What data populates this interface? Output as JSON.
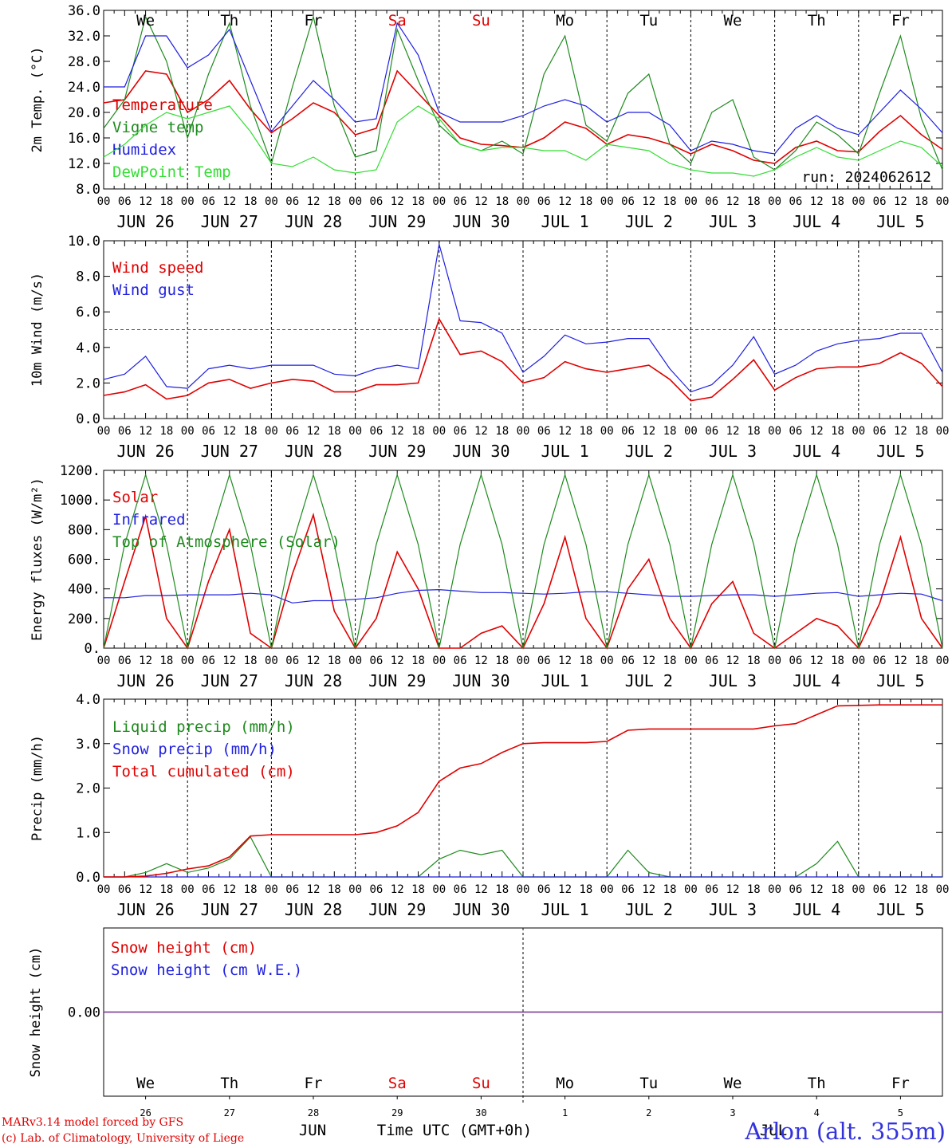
{
  "days": [
    "JUN 26",
    "JUN 27",
    "JUN 28",
    "JUN 29",
    "JUN 30",
    "JUL 1",
    "JUL 2",
    "JUL 3",
    "JUL 4",
    "JUL 5"
  ],
  "weekdays": [
    {
      "label": "We",
      "weekend": false
    },
    {
      "label": "Th",
      "weekend": false
    },
    {
      "label": "Fr",
      "weekend": false
    },
    {
      "label": "Sa",
      "weekend": true
    },
    {
      "label": "Su",
      "weekend": true
    },
    {
      "label": "Mo",
      "weekend": false
    },
    {
      "label": "Tu",
      "weekend": false
    },
    {
      "label": "We",
      "weekend": false
    },
    {
      "label": "Th",
      "weekend": false
    },
    {
      "label": "Fr",
      "weekend": false
    }
  ],
  "hour_ticks": [
    "00",
    "06",
    "12",
    "18"
  ],
  "last_hour_tick": "00",
  "day_numbers": [
    "26",
    "27",
    "28",
    "29",
    "30",
    "1",
    "2",
    "3",
    "4",
    "5"
  ],
  "month_labels": {
    "jun": "JUN",
    "jul": "JUL"
  },
  "run_label": "run: 2024062612",
  "bottom_axis_title": "Time UTC (GMT+0h)",
  "credit_line1": "MARv3.14 model forced by GFS",
  "credit_line2": "(c) Lab. of Climatology, University of Liege",
  "station": "Arlon (alt. 355m)",
  "colors": {
    "red": "#e00000",
    "green": "#1e8a1e",
    "blue": "#1f1fe0",
    "lightgreen": "#33dd33",
    "purple": "#7a3b9a"
  },
  "chart_data": [
    {
      "type": "line",
      "ylabel": "2m Temp. (°C)",
      "ylim": [
        8.0,
        36.0
      ],
      "yticks": [
        "8.0",
        "12.0",
        "16.0",
        "20.0",
        "24.0",
        "28.0",
        "32.0",
        "36.0"
      ],
      "x_hours": [
        0,
        6,
        12,
        18,
        24,
        30,
        36,
        42,
        48,
        54,
        60,
        66,
        72,
        78,
        84,
        90,
        96,
        102,
        108,
        114,
        120,
        126,
        132,
        138,
        144,
        150,
        156,
        162,
        168,
        174,
        180,
        186,
        192,
        198,
        204,
        210,
        216,
        222,
        228,
        234,
        240
      ],
      "series": [
        {
          "name": "Temperature",
          "color": "red",
          "values": [
            21.5,
            22,
            26.5,
            26,
            20,
            22,
            25,
            20.5,
            16.8,
            19,
            21.5,
            20,
            16.5,
            17.5,
            26.5,
            23,
            19.5,
            16,
            15,
            14.8,
            14.5,
            16,
            18.5,
            17.5,
            15,
            16.5,
            16,
            15,
            13.5,
            15,
            14,
            12.5,
            12,
            14.5,
            15.5,
            14,
            13.8,
            17,
            19.5,
            16.5,
            14.2
          ]
        },
        {
          "name": "Vigne temp",
          "color": "green",
          "values": [
            17.5,
            22,
            35,
            28,
            16,
            26,
            34,
            21,
            12,
            24,
            35,
            21,
            13,
            14,
            33,
            25,
            18,
            15,
            14,
            15.5,
            13.5,
            26,
            32,
            18,
            15.5,
            23,
            26,
            15,
            12,
            20,
            22,
            13,
            11,
            14,
            18.5,
            16.5,
            13.5,
            23,
            32,
            19,
            11
          ]
        },
        {
          "name": "Humidex",
          "color": "blue",
          "values": [
            24,
            24,
            32,
            32,
            27,
            29,
            33,
            25,
            17,
            21,
            25,
            22,
            18.5,
            19,
            34,
            29,
            20,
            18.5,
            18.5,
            18.5,
            19.5,
            21,
            22,
            21,
            18.5,
            20,
            20,
            18,
            14,
            15.5,
            15,
            14,
            13.5,
            17.5,
            19.5,
            17.5,
            16.5,
            20,
            23.5,
            20.5,
            16.8
          ]
        },
        {
          "name": "DewPoint Temp",
          "color": "lightgreen",
          "values": [
            13,
            15,
            18,
            20,
            19,
            20,
            21,
            17,
            12,
            11.5,
            13,
            11,
            10.5,
            11,
            18.5,
            21,
            19,
            15,
            14,
            14.5,
            14.5,
            14,
            14,
            12.5,
            15,
            14.5,
            14,
            12,
            11,
            10.5,
            10.5,
            10,
            11,
            13,
            14.5,
            13,
            12.5,
            14,
            15.5,
            14.5,
            11.5
          ]
        }
      ]
    },
    {
      "type": "line",
      "ylabel": "10m Wind (m/s)",
      "ylim": [
        0.0,
        10.0
      ],
      "yticks": [
        "0.0",
        "2.0",
        "4.0",
        "6.0",
        "8.0",
        "10.0"
      ],
      "reference_line": 5.0,
      "x_hours": [
        0,
        6,
        12,
        18,
        24,
        30,
        36,
        42,
        48,
        54,
        60,
        66,
        72,
        78,
        84,
        90,
        96,
        102,
        108,
        114,
        120,
        126,
        132,
        138,
        144,
        150,
        156,
        162,
        168,
        174,
        180,
        186,
        192,
        198,
        204,
        210,
        216,
        222,
        228,
        234,
        240
      ],
      "series": [
        {
          "name": "Wind speed",
          "color": "red",
          "values": [
            1.3,
            1.5,
            1.9,
            1.1,
            1.3,
            2,
            2.2,
            1.7,
            2,
            2.2,
            2.1,
            1.5,
            1.5,
            1.9,
            1.9,
            2,
            5.6,
            3.6,
            3.8,
            3.2,
            2,
            2.3,
            3.2,
            2.8,
            2.6,
            2.8,
            3,
            2.2,
            1,
            1.2,
            2.2,
            3.3,
            1.6,
            2.3,
            2.8,
            2.9,
            2.9,
            3.1,
            3.7,
            3.1,
            1.8
          ]
        },
        {
          "name": "Wind gust",
          "color": "blue",
          "values": [
            2.2,
            2.5,
            3.5,
            1.8,
            1.7,
            2.8,
            3,
            2.8,
            3,
            3,
            3,
            2.5,
            2.4,
            2.8,
            3,
            2.8,
            9.8,
            5.5,
            5.4,
            4.8,
            2.6,
            3.5,
            4.7,
            4.2,
            4.3,
            4.5,
            4.5,
            2.8,
            1.5,
            1.9,
            3,
            4.6,
            2.5,
            3,
            3.8,
            4.2,
            4.4,
            4.5,
            4.8,
            4.8,
            2.6
          ]
        }
      ]
    },
    {
      "type": "line",
      "ylabel": "Energy fluxes (W/m²)",
      "ylim": [
        0,
        1200
      ],
      "yticks": [
        "0.",
        "200.",
        "400.",
        "600.",
        "800.",
        "1000.",
        "1200."
      ],
      "x_hours": [
        0,
        6,
        12,
        18,
        24,
        30,
        36,
        42,
        48,
        54,
        60,
        66,
        72,
        78,
        84,
        90,
        96,
        102,
        108,
        114,
        120,
        126,
        132,
        138,
        144,
        150,
        156,
        162,
        168,
        174,
        180,
        186,
        192,
        198,
        204,
        210,
        216,
        222,
        228,
        234,
        240
      ],
      "series": [
        {
          "name": "Solar",
          "color": "red",
          "values": [
            0,
            450,
            890,
            200,
            0,
            450,
            800,
            100,
            0,
            500,
            900,
            250,
            0,
            200,
            650,
            400,
            0,
            0,
            100,
            150,
            0,
            300,
            750,
            200,
            0,
            400,
            600,
            200,
            0,
            300,
            450,
            100,
            0,
            100,
            200,
            150,
            0,
            300,
            750,
            200,
            0
          ]
        },
        {
          "name": "Infrared",
          "color": "blue",
          "values": [
            340,
            340,
            355,
            355,
            360,
            360,
            360,
            370,
            360,
            305,
            320,
            320,
            330,
            340,
            370,
            390,
            395,
            385,
            375,
            375,
            370,
            365,
            370,
            380,
            380,
            370,
            360,
            350,
            350,
            355,
            360,
            360,
            350,
            360,
            370,
            375,
            350,
            360,
            370,
            365,
            320
          ]
        },
        {
          "name": "Top of Atmosphere (Solar)",
          "color": "green",
          "values": [
            0,
            700,
            1170,
            700,
            0,
            700,
            1170,
            700,
            0,
            700,
            1170,
            700,
            0,
            700,
            1170,
            700,
            0,
            700,
            1170,
            700,
            0,
            700,
            1170,
            700,
            0,
            700,
            1170,
            700,
            0,
            700,
            1170,
            700,
            0,
            700,
            1170,
            700,
            0,
            700,
            1170,
            700,
            0
          ]
        }
      ]
    },
    {
      "type": "line",
      "ylabel": "Precip (mm/h)",
      "ylim": [
        0.0,
        4.0
      ],
      "yticks": [
        "0.0",
        "1.0",
        "2.0",
        "3.0",
        "4.0"
      ],
      "x_hours": [
        0,
        6,
        12,
        18,
        24,
        30,
        36,
        42,
        48,
        54,
        60,
        66,
        72,
        78,
        84,
        90,
        96,
        102,
        108,
        114,
        120,
        126,
        132,
        138,
        144,
        150,
        156,
        162,
        168,
        174,
        180,
        186,
        192,
        198,
        204,
        210,
        216,
        222,
        228,
        234,
        240
      ],
      "series": [
        {
          "name": "Liquid precip (mm/h)",
          "color": "green",
          "values": [
            0,
            0,
            0.1,
            0.3,
            0.1,
            0.2,
            0.4,
            0.9,
            0,
            0,
            0,
            0,
            0,
            0,
            0,
            0,
            0.4,
            0.6,
            0.5,
            0.6,
            0,
            0,
            0,
            0,
            0,
            0.6,
            0.1,
            0,
            0,
            0,
            0,
            0,
            0,
            0,
            0.3,
            0.8,
            0,
            0,
            0,
            0,
            0
          ]
        },
        {
          "name": "Snow precip (mm/h)",
          "color": "blue",
          "values": [
            0,
            0,
            0,
            0,
            0,
            0,
            0,
            0,
            0,
            0,
            0,
            0,
            0,
            0,
            0,
            0,
            0,
            0,
            0,
            0,
            0,
            0,
            0,
            0,
            0,
            0,
            0,
            0,
            0,
            0,
            0,
            0,
            0,
            0,
            0,
            0,
            0,
            0,
            0,
            0,
            0
          ]
        },
        {
          "name": "Total cumulated (cm)",
          "color": "red",
          "values": [
            0,
            0,
            0.02,
            0.08,
            0.18,
            0.25,
            0.45,
            0.92,
            0.95,
            0.95,
            0.95,
            0.95,
            0.95,
            1.0,
            1.15,
            1.45,
            2.15,
            2.45,
            2.55,
            2.8,
            3.0,
            3.02,
            3.02,
            3.02,
            3.05,
            3.3,
            3.33,
            3.33,
            3.33,
            3.33,
            3.33,
            3.33,
            3.4,
            3.45,
            3.65,
            3.85,
            3.86,
            3.87,
            3.87,
            3.87,
            3.87
          ]
        }
      ]
    },
    {
      "type": "line",
      "ylabel": "Snow height (cm)",
      "ylim": [
        -1,
        1
      ],
      "yticks": [
        "0.00"
      ],
      "x_hours": [
        0,
        240
      ],
      "series": [
        {
          "name": "Snow height (cm)",
          "color": "red",
          "values": [
            0,
            0
          ]
        },
        {
          "name": "Snow height (cm W.E.)",
          "color": "blue",
          "values": [
            0,
            0
          ]
        }
      ]
    }
  ]
}
